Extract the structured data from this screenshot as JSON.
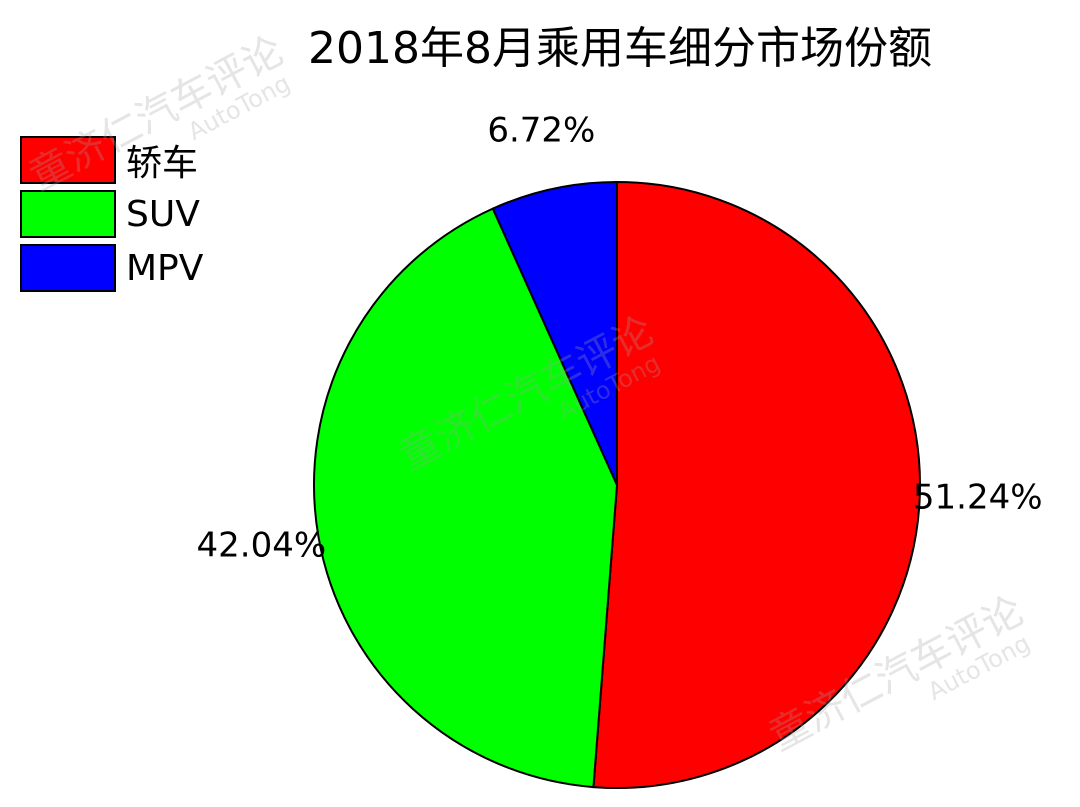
{
  "chart_data": {
    "type": "pie",
    "title": "2018年8月乘用车细分市场份额",
    "slices": [
      {
        "name": "轿车",
        "value": 51.24,
        "label": "51.24%",
        "color": "#ff0000"
      },
      {
        "name": "SUV",
        "value": 42.04,
        "label": "42.04%",
        "color": "#00ff00"
      },
      {
        "name": "MPV",
        "value": 6.72,
        "label": "6.72%",
        "color": "#0000ff"
      }
    ],
    "start": "top",
    "direction": "clockwise",
    "legend_position": "top-left"
  },
  "watermark": {
    "text": "童济仁汽车评论",
    "subtext": "AutoTong"
  }
}
